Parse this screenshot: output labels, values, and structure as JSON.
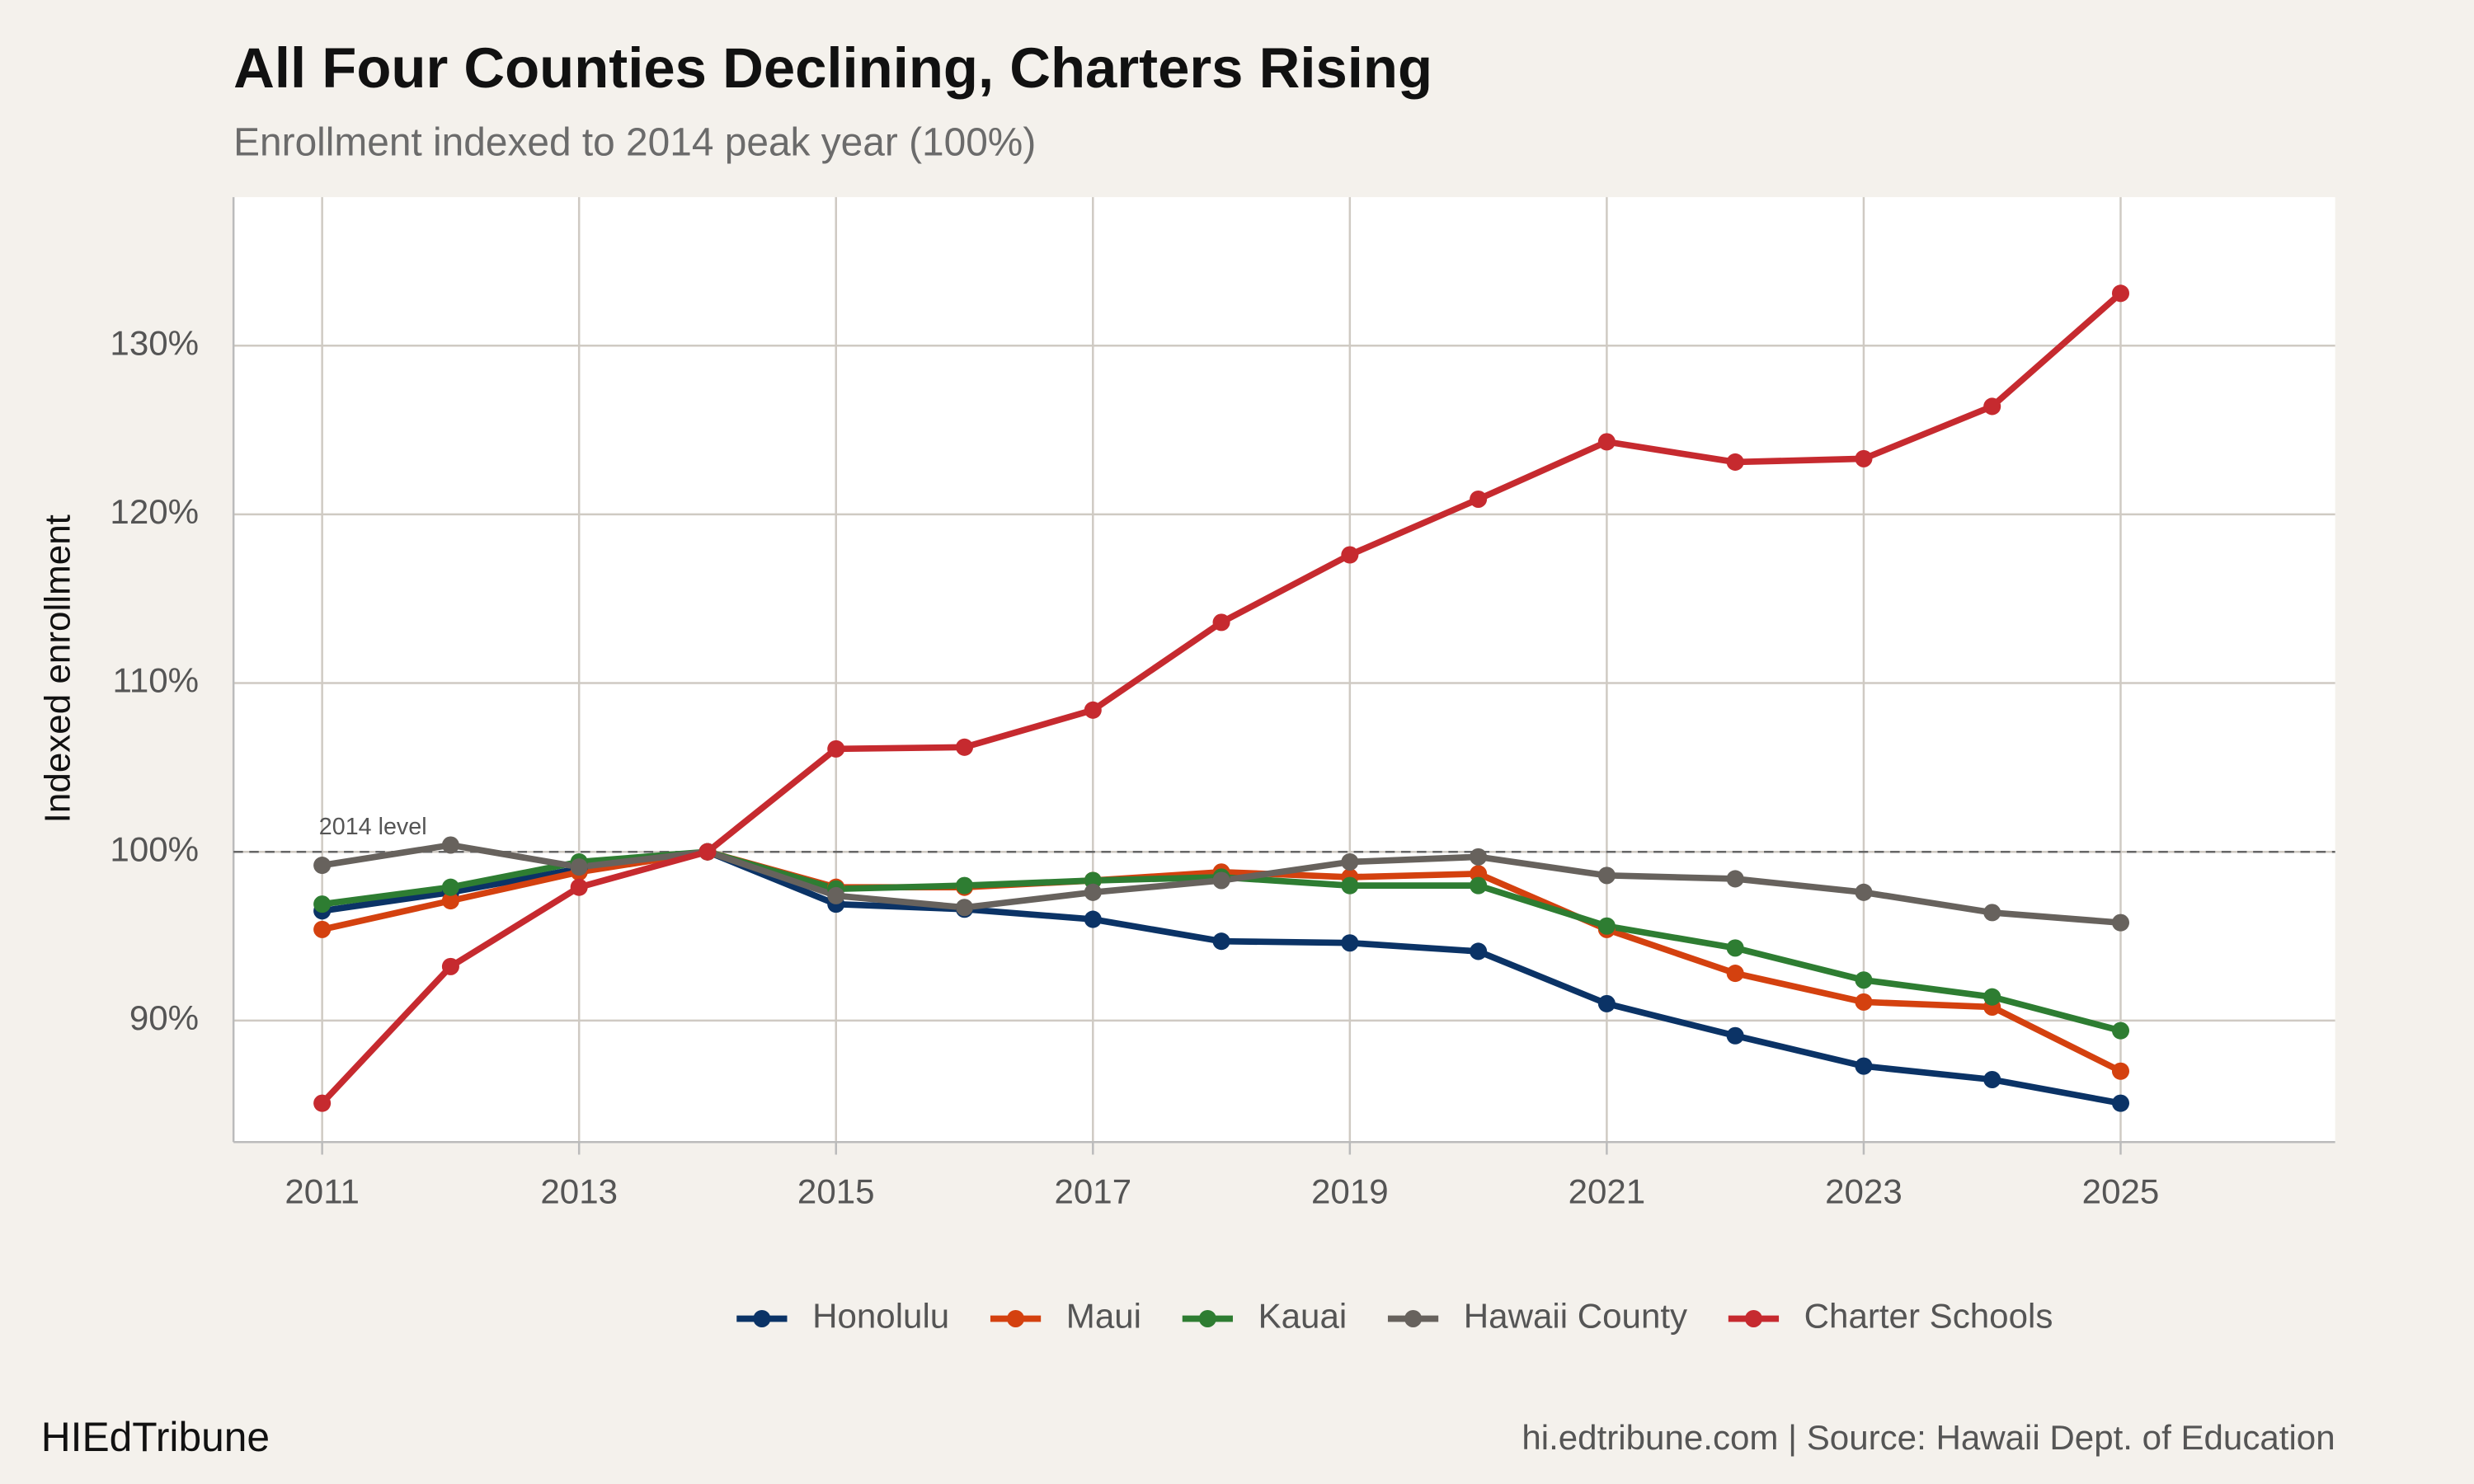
{
  "chart_data": {
    "type": "line",
    "title": "All Four Counties Declining, Charters Rising",
    "subtitle": "Enrollment indexed to 2014 peak year (100%)",
    "y_label": "Indexed enrollment",
    "x": [
      2011,
      2012,
      2013,
      2014,
      2015,
      2016,
      2017,
      2018,
      2019,
      2020,
      2021,
      2022,
      2023,
      2024,
      2025
    ],
    "series": [
      {
        "name": "Honolulu",
        "color": "#0b3366",
        "values": [
          96.5,
          97.6,
          99.0,
          100,
          96.9,
          96.6,
          96.0,
          94.7,
          94.6,
          94.1,
          91.0,
          89.1,
          87.3,
          86.5,
          85.1
        ]
      },
      {
        "name": "Maui",
        "color": "#d4410f",
        "values": [
          95.4,
          97.1,
          98.8,
          100,
          97.9,
          97.9,
          98.3,
          98.8,
          98.5,
          98.7,
          95.4,
          92.8,
          91.1,
          90.8,
          87.0
        ]
      },
      {
        "name": "Kauai",
        "color": "#2e7d32",
        "values": [
          96.9,
          97.9,
          99.4,
          100,
          97.8,
          98.0,
          98.3,
          98.5,
          98.0,
          98.0,
          95.6,
          94.3,
          92.4,
          91.4,
          89.4
        ]
      },
      {
        "name": "Hawaii County",
        "color": "#67625d",
        "values": [
          99.2,
          100.4,
          99.1,
          100,
          97.4,
          96.7,
          97.6,
          98.3,
          99.4,
          99.7,
          98.6,
          98.4,
          97.6,
          96.4,
          95.8
        ]
      },
      {
        "name": "Charter Schools",
        "color": "#c62a2f",
        "values": [
          85.1,
          93.2,
          97.9,
          100,
          106.1,
          106.2,
          108.4,
          113.6,
          117.6,
          120.9,
          124.3,
          123.1,
          123.3,
          126.4,
          133.1
        ]
      }
    ],
    "xlim": [
      2010.31,
      2026.67
    ],
    "xticks": [
      2011,
      2013,
      2015,
      2017,
      2019,
      2021,
      2023,
      2025
    ],
    "ylim": [
      82.8,
      138.8
    ],
    "yticks": [
      {
        "value": 90,
        "label": "90%"
      },
      {
        "value": 100,
        "label": "100%"
      },
      {
        "value": 110,
        "label": "110%"
      },
      {
        "value": 120,
        "label": "120%"
      },
      {
        "value": 130,
        "label": "130%"
      }
    ],
    "reference_line": {
      "value": 100,
      "label": "2014 level"
    },
    "grid": true,
    "legend": "bottom",
    "brand": "HIEdTribune",
    "caption": "hi.edtribune.com | Source: Hawaii Dept. of Education"
  }
}
